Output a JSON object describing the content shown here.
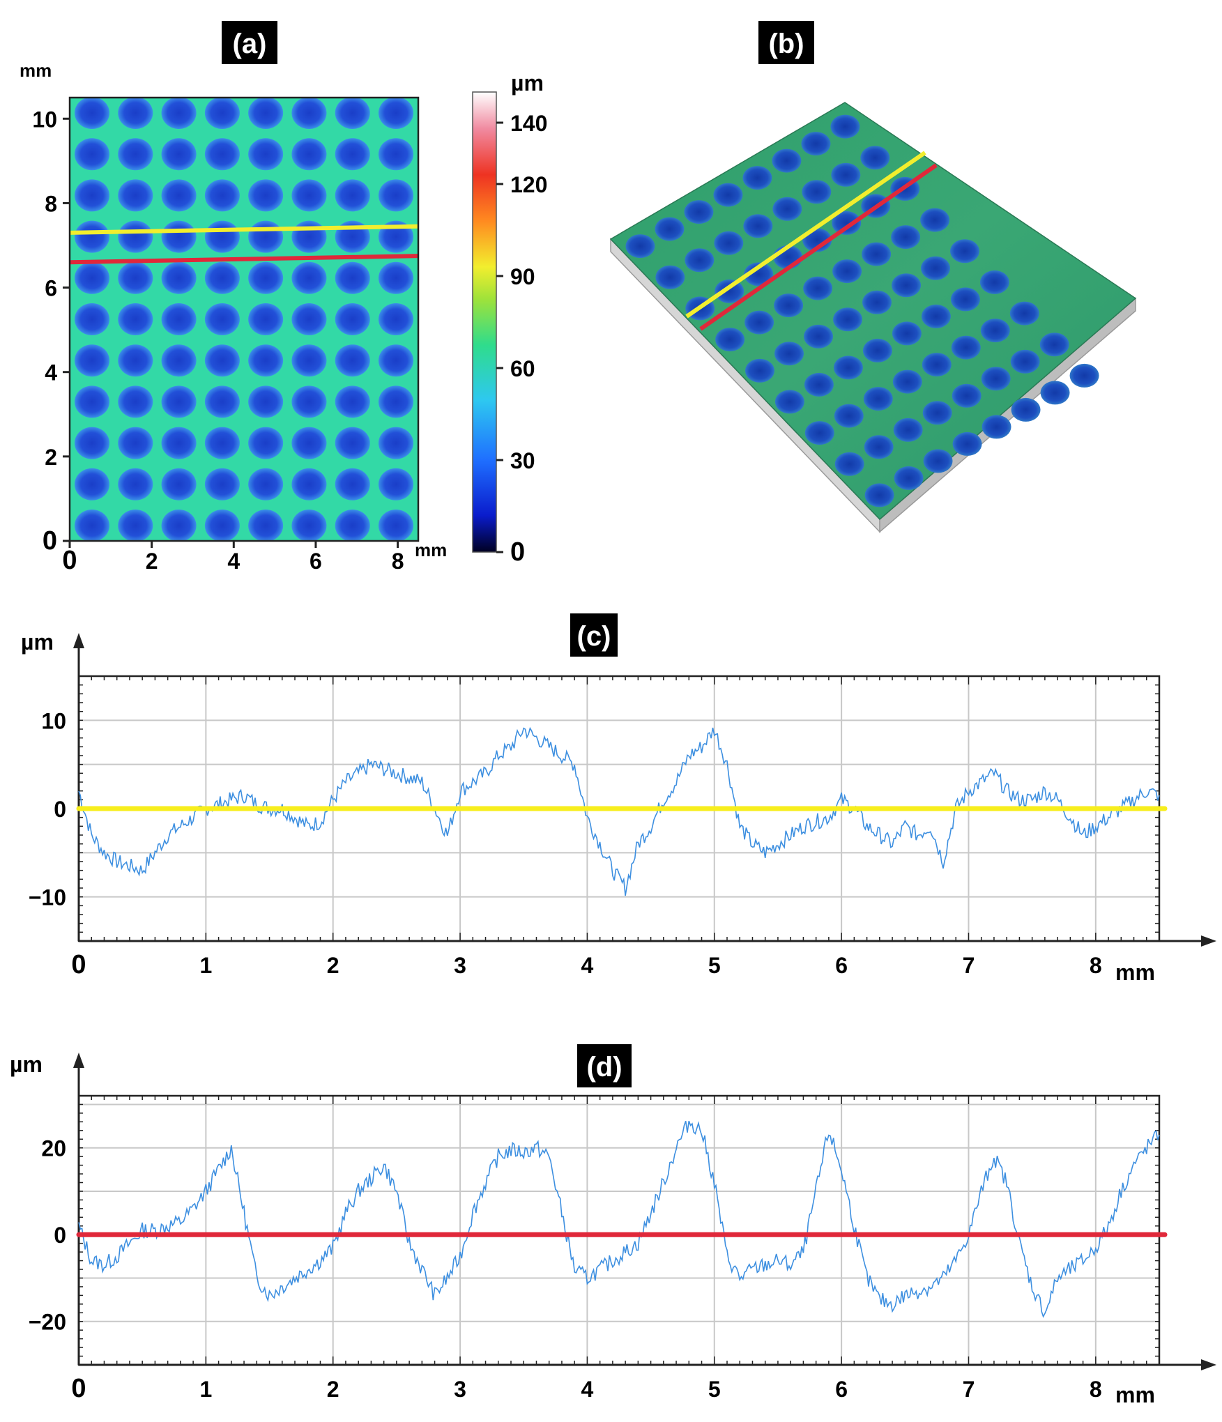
{
  "chart_data": [
    {
      "id": "a",
      "type": "heatmap",
      "panel_label": "(a)",
      "description_text": "",
      "x_unit": "mm",
      "y_unit": "mm",
      "xlim": [
        0,
        8.5
      ],
      "ylim": [
        0,
        10.5
      ],
      "x_ticks": [
        "0",
        "2",
        "4",
        "6",
        "8"
      ],
      "y_ticks": [
        "0",
        "2",
        "4",
        "6",
        "8",
        "10"
      ],
      "x_tick_values": [
        0,
        2,
        4,
        6,
        8
      ],
      "y_tick_values": [
        0,
        2,
        4,
        6,
        8,
        10
      ],
      "dimple_rows": 11,
      "dimple_cols": 8,
      "profile_lines": [
        {
          "color": "#f2ee2e",
          "y_start": 7.3,
          "y_end": 7.45
        },
        {
          "color": "#e0283a",
          "y_start": 6.6,
          "y_end": 6.75
        }
      ],
      "colorbar": {
        "unit": "µm",
        "range": [
          0,
          150
        ],
        "ticks": [
          "0",
          "30",
          "60",
          "90",
          "120",
          "140"
        ],
        "tick_values": [
          0,
          30,
          60,
          90,
          120,
          140
        ]
      }
    },
    {
      "id": "b",
      "type": "surface-3d",
      "panel_label": "(b)",
      "dimple_rows": 8,
      "dimple_cols": 9,
      "profile_line_colors": [
        "#f2ee2e",
        "#e0283a"
      ]
    },
    {
      "id": "c",
      "type": "line",
      "panel_label": "(c)",
      "x_unit": "mm",
      "y_unit": "µm",
      "xlim": [
        0,
        8.5
      ],
      "ylim": [
        -15,
        15
      ],
      "x_ticks": [
        "0",
        "1",
        "2",
        "3",
        "4",
        "5",
        "6",
        "7",
        "8"
      ],
      "y_ticks": [
        "−10",
        "0",
        "10"
      ],
      "y_tick_values": [
        -10,
        0,
        10
      ],
      "reference_line": {
        "y": 0,
        "color": "#f7ee1c"
      },
      "series": [
        {
          "name": "profile along yellow line",
          "color": "#3d8fe0",
          "x": [
            0,
            0.1,
            0.2,
            0.3,
            0.4,
            0.5,
            0.6,
            0.7,
            0.8,
            0.9,
            1.0,
            1.1,
            1.2,
            1.3,
            1.4,
            1.5,
            1.6,
            1.7,
            1.8,
            1.9,
            2.0,
            2.1,
            2.2,
            2.3,
            2.4,
            2.5,
            2.6,
            2.7,
            2.8,
            2.9,
            3.0,
            3.1,
            3.2,
            3.3,
            3.4,
            3.5,
            3.6,
            3.7,
            3.8,
            3.9,
            4.0,
            4.1,
            4.2,
            4.3,
            4.4,
            4.5,
            4.6,
            4.7,
            4.8,
            4.9,
            5.0,
            5.1,
            5.2,
            5.3,
            5.4,
            5.5,
            5.6,
            5.7,
            5.8,
            5.9,
            6.0,
            6.1,
            6.2,
            6.3,
            6.4,
            6.5,
            6.6,
            6.7,
            6.8,
            6.9,
            7.0,
            7.1,
            7.2,
            7.3,
            7.4,
            7.5,
            7.6,
            7.7,
            7.8,
            7.9,
            8.0,
            8.1,
            8.2,
            8.3,
            8.4,
            8.5
          ],
          "values": [
            2,
            -3,
            -5,
            -6,
            -6.5,
            -7,
            -5,
            -3,
            -2,
            -1,
            0,
            0.5,
            1,
            1.5,
            0.5,
            0,
            0,
            -1,
            -2,
            -1.5,
            1,
            3,
            4,
            5,
            4.5,
            4,
            3.5,
            3,
            0,
            -3,
            2,
            3,
            4,
            6,
            7,
            9,
            8,
            7,
            6,
            5,
            -1,
            -4,
            -7,
            -9,
            -4,
            -2,
            1,
            3,
            6,
            7,
            9,
            5,
            -2,
            -4,
            -5,
            -4,
            -3,
            -2,
            -1.5,
            -1,
            1,
            0,
            -2,
            -3,
            -4,
            -2,
            -3,
            -2,
            -6,
            0,
            2,
            3,
            4,
            2,
            1,
            1,
            2,
            1,
            -1,
            -3,
            -2,
            -1,
            0,
            1,
            2,
            1.5
          ]
        }
      ]
    },
    {
      "id": "d",
      "type": "line",
      "panel_label": "(d)",
      "x_unit": "mm",
      "y_unit": "µm",
      "xlim": [
        0,
        8.5
      ],
      "ylim": [
        -30,
        32
      ],
      "x_ticks": [
        "0",
        "1",
        "2",
        "3",
        "4",
        "5",
        "6",
        "7",
        "8"
      ],
      "y_ticks": [
        "−20",
        "0",
        "20"
      ],
      "y_tick_values": [
        -20,
        0,
        20
      ],
      "reference_line": {
        "y": 0,
        "color": "#e0283a"
      },
      "series": [
        {
          "name": "profile along red line",
          "color": "#3d8fe0",
          "x": [
            0,
            0.1,
            0.2,
            0.3,
            0.4,
            0.5,
            0.6,
            0.7,
            0.8,
            0.9,
            1.0,
            1.1,
            1.2,
            1.3,
            1.4,
            1.5,
            1.6,
            1.7,
            1.8,
            1.9,
            2.0,
            2.1,
            2.2,
            2.3,
            2.4,
            2.5,
            2.6,
            2.7,
            2.8,
            2.9,
            3.0,
            3.1,
            3.2,
            3.3,
            3.4,
            3.5,
            3.6,
            3.7,
            3.8,
            3.9,
            4.0,
            4.1,
            4.2,
            4.3,
            4.4,
            4.5,
            4.6,
            4.7,
            4.8,
            4.9,
            5.0,
            5.1,
            5.2,
            5.3,
            5.4,
            5.5,
            5.6,
            5.7,
            5.8,
            5.9,
            6.0,
            6.1,
            6.2,
            6.3,
            6.4,
            6.5,
            6.6,
            6.7,
            6.8,
            6.9,
            7.0,
            7.1,
            7.2,
            7.3,
            7.4,
            7.5,
            7.6,
            7.7,
            7.8,
            7.9,
            8.0,
            8.1,
            8.2,
            8.3,
            8.4,
            8.5
          ],
          "values": [
            2,
            -6,
            -7,
            -5,
            -2,
            1,
            1,
            2,
            3,
            6,
            10,
            15,
            20,
            5,
            -10,
            -14,
            -12,
            -10,
            -8,
            -6,
            -3,
            5,
            10,
            13,
            16,
            10,
            -2,
            -8,
            -14,
            -10,
            -5,
            5,
            12,
            18,
            19.5,
            19,
            20,
            18,
            5,
            -8,
            -10,
            -8,
            -6,
            -4,
            -2,
            5,
            12,
            20,
            26,
            24,
            12,
            -5,
            -10,
            -8,
            -7,
            -6,
            -7,
            -4,
            10,
            24,
            15,
            2,
            -10,
            -15,
            -16,
            -14,
            -13,
            -12,
            -10,
            -6,
            0,
            10,
            18,
            12,
            -2,
            -12,
            -18,
            -10,
            -8,
            -6,
            -3,
            2,
            10,
            16,
            20,
            23
          ]
        }
      ]
    }
  ]
}
